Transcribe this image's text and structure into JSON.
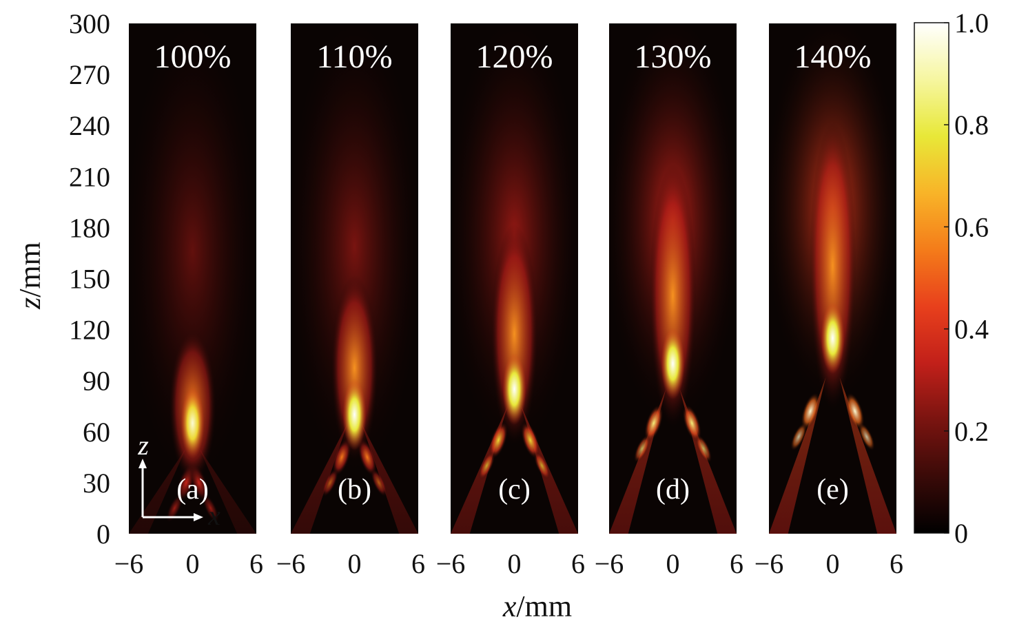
{
  "chart_data": {
    "type": "heatmap",
    "xlabel_var": "x",
    "xlabel_unit": "/mm",
    "ylabel_var": "z",
    "ylabel_unit": "/mm",
    "x_ticks": [
      "−6",
      "0",
      "6"
    ],
    "xlim": [
      -6,
      6
    ],
    "ylim": [
      0,
      300
    ],
    "y_ticks": [
      "0",
      "30",
      "60",
      "90",
      "120",
      "150",
      "180",
      "210",
      "240",
      "270",
      "300"
    ],
    "panels": [
      {
        "tag": "(a)",
        "percent": "100%",
        "focus_z": 65,
        "z_start": 42,
        "z_end": 108,
        "peak": 0.95,
        "sidelobe_z": 30,
        "sidelobe_dx": 0.6,
        "sidelobe_amp": 0.35,
        "tail": 0.08
      },
      {
        "tag": "(b)",
        "percent": "110%",
        "focus_z": 70,
        "z_start": 55,
        "z_end": 140,
        "peak": 1.0,
        "sidelobe_z": 45,
        "sidelobe_dx": 1.2,
        "sidelobe_amp": 0.55,
        "tail": 0.12
      },
      {
        "tag": "(c)",
        "percent": "120%",
        "focus_z": 85,
        "z_start": 65,
        "z_end": 170,
        "peak": 1.0,
        "sidelobe_z": 55,
        "sidelobe_dx": 1.5,
        "sidelobe_amp": 0.75,
        "tail": 0.16
      },
      {
        "tag": "(d)",
        "percent": "130%",
        "focus_z": 100,
        "z_start": 75,
        "z_end": 205,
        "peak": 1.0,
        "sidelobe_z": 65,
        "sidelobe_dx": 1.8,
        "sidelobe_amp": 0.85,
        "tail": 0.24
      },
      {
        "tag": "(e)",
        "percent": "140%",
        "focus_z": 115,
        "z_start": 85,
        "z_end": 230,
        "peak": 1.0,
        "sidelobe_z": 72,
        "sidelobe_dx": 2.1,
        "sidelobe_amp": 0.95,
        "tail": 0.32
      }
    ],
    "colorbar": {
      "range": [
        0,
        1
      ],
      "ticks": [
        "0",
        "0.2",
        "0.4",
        "0.6",
        "0.8",
        "1.0"
      ],
      "colormap": [
        "#000000",
        "#3a0a08",
        "#7a1410",
        "#c2201a",
        "#e8401c",
        "#f47c1a",
        "#f8b428",
        "#e8e838",
        "#f6f6a0",
        "#ffffff"
      ]
    },
    "inset_axes": {
      "z_label": "z",
      "x_label": "x"
    }
  }
}
